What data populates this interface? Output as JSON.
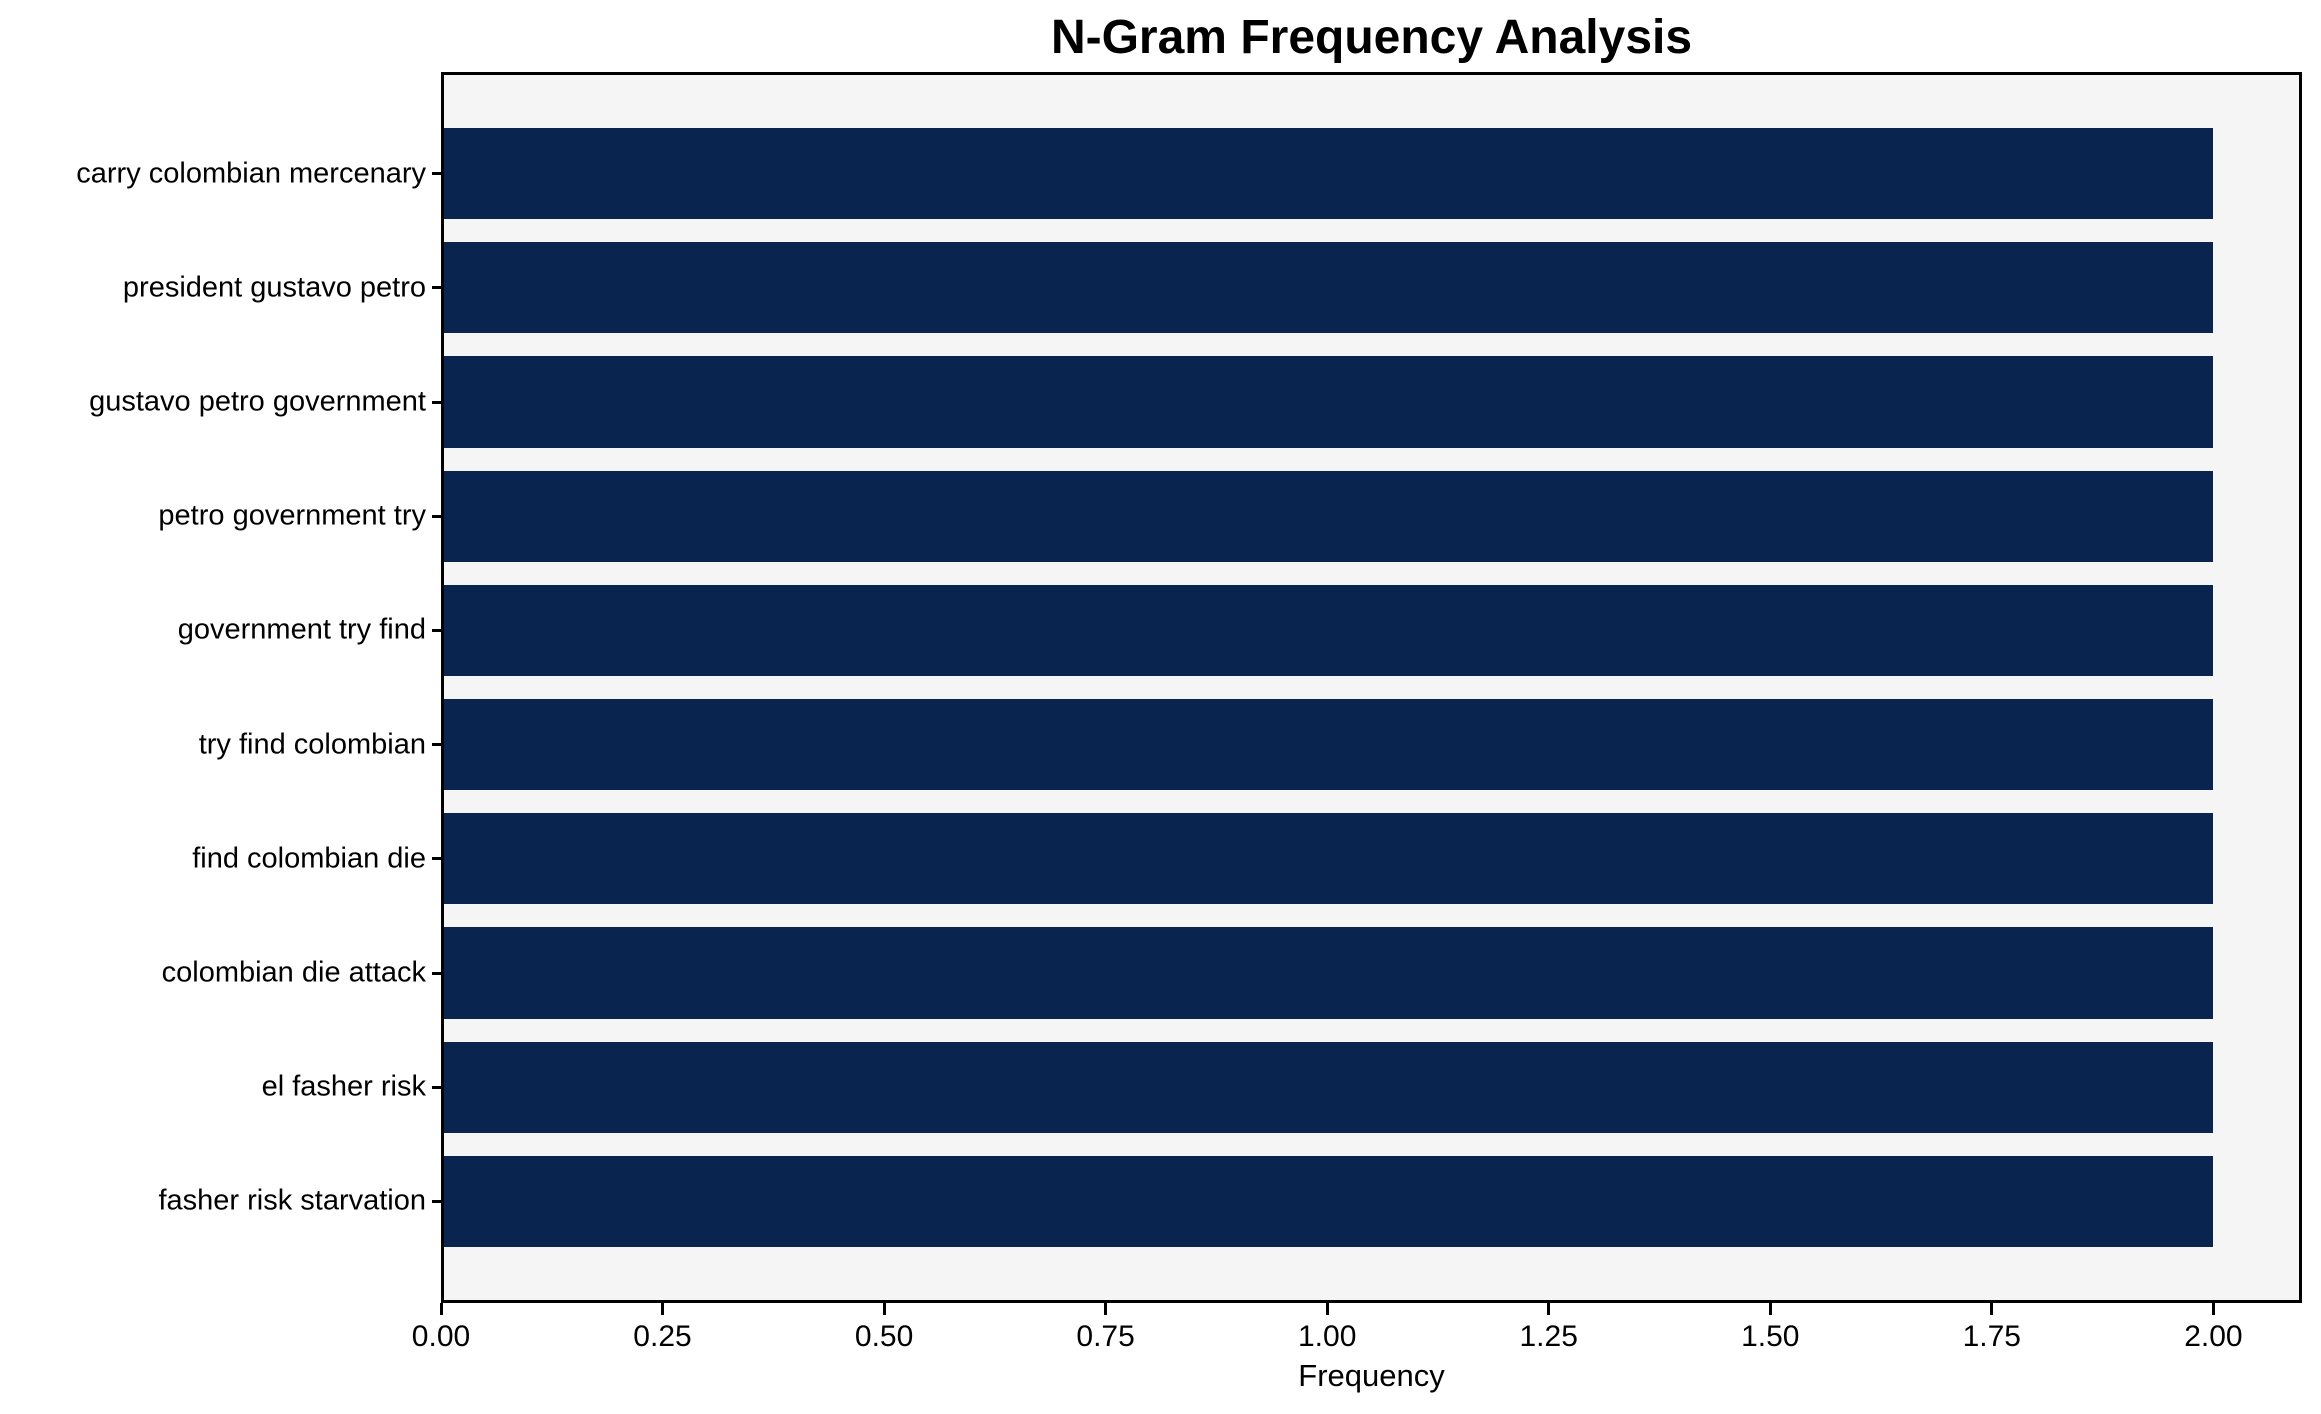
{
  "chart_data": {
    "type": "bar",
    "orientation": "horizontal",
    "title": "N-Gram Frequency Analysis",
    "xlabel": "Frequency",
    "ylabel": "",
    "categories": [
      "carry colombian mercenary",
      "president gustavo petro",
      "gustavo petro government",
      "petro government try",
      "government try find",
      "try find colombian",
      "find colombian die",
      "colombian die attack",
      "el fasher risk",
      "fasher risk starvation"
    ],
    "values": [
      2,
      2,
      2,
      2,
      2,
      2,
      2,
      2,
      2,
      2
    ],
    "xlim": [
      0,
      2.1
    ],
    "xtick_labels": [
      "0.00",
      "0.25",
      "0.50",
      "0.75",
      "1.00",
      "1.25",
      "1.50",
      "1.75",
      "2.00"
    ],
    "grid": false,
    "legend": "none",
    "colors": {
      "bar": "#08244f",
      "plot_background": "#f5f5f5",
      "figure_background": "#ffffff",
      "spine": "#000000",
      "text": "#000000"
    }
  }
}
